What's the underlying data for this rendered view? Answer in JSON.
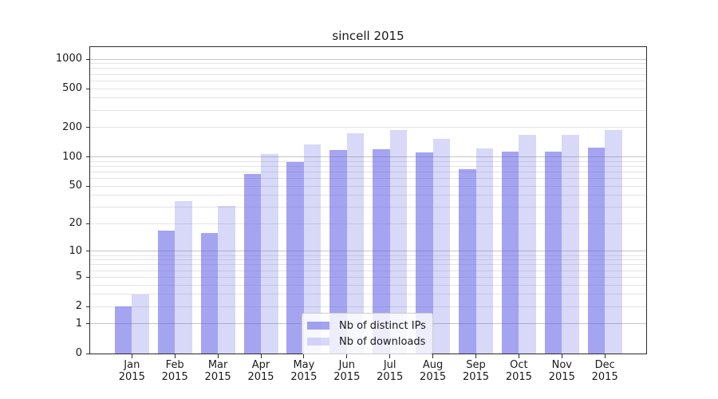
{
  "chart_data": {
    "type": "bar",
    "title": "sincell 2015",
    "categories": [
      "Jan",
      "Feb",
      "Mar",
      "Apr",
      "May",
      "Jun",
      "Jul",
      "Aug",
      "Sep",
      "Oct",
      "Nov",
      "Dec"
    ],
    "year_label": "2015",
    "series": [
      {
        "name": "Nb of distinct IPs",
        "color": "#5a5ae68c",
        "values": [
          2,
          17,
          16,
          66,
          88,
          117,
          120,
          111,
          75,
          113,
          113,
          125
        ]
      },
      {
        "name": "Nb of downloads",
        "color": "#5a5ae63d",
        "values": [
          3,
          35,
          31,
          106,
          134,
          174,
          190,
          152,
          122,
          168,
          168,
          190
        ]
      }
    ],
    "yticks": [
      0,
      1,
      2,
      5,
      10,
      20,
      50,
      100,
      200,
      500,
      1000
    ],
    "ylim": [
      0,
      1325
    ],
    "scale": "log1p",
    "grid": {
      "major_color": "#c6c6c6",
      "minor_color": "#e4e4e4"
    },
    "legend_position": "lower-center",
    "xlabel": "",
    "ylabel": ""
  }
}
